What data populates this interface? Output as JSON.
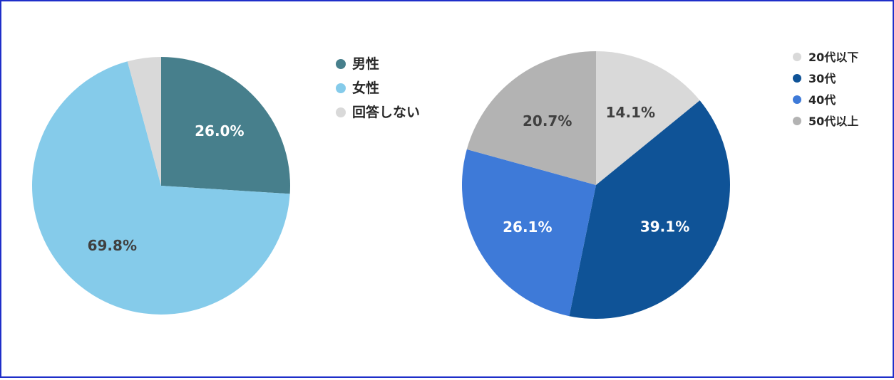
{
  "chart_data": [
    {
      "type": "pie",
      "title": "",
      "categories": [
        "男性",
        "女性",
        "回答しない"
      ],
      "values": [
        26.0,
        69.8,
        4.2
      ],
      "labels": [
        "26.0%",
        "69.8%",
        ""
      ],
      "colors": [
        "#477f8c",
        "#85cbea",
        "#d9d9d9"
      ],
      "label_colors": [
        "#ffffff",
        "#404040",
        "#404040"
      ],
      "legend": "right"
    },
    {
      "type": "pie",
      "title": "",
      "categories": [
        "20代以下",
        "30代",
        "40代",
        "50代以上"
      ],
      "values": [
        14.1,
        39.1,
        26.1,
        20.7
      ],
      "labels": [
        "14.1%",
        "39.1%",
        "26.1%",
        "20.7%"
      ],
      "colors": [
        "#d9d9d9",
        "#0f5397",
        "#3e7ad8",
        "#b3b3b3"
      ],
      "label_colors": [
        "#404040",
        "#ffffff",
        "#ffffff",
        "#404040"
      ],
      "legend": "top-right"
    }
  ]
}
